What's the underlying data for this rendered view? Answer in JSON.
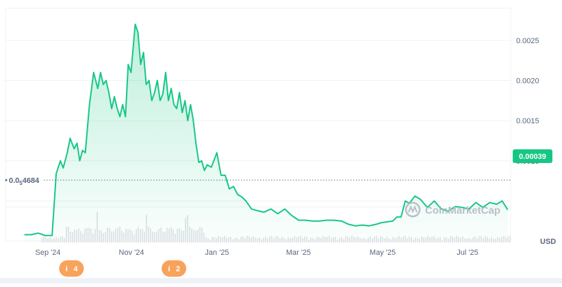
{
  "chart_data": {
    "type": "area",
    "currency_label": "USD",
    "current_price_label": "0.00039",
    "min_price_label": "0.0",
    "min_price_subscript": "5",
    "min_price_suffix": "4684",
    "watermark": "CoinMarketCap",
    "x_tick_labels": [
      "Sep '24",
      "Nov '24",
      "Jan '25",
      "Mar '25",
      "May '25",
      "Jul '25"
    ],
    "y_tick_labels": [
      "0.0025",
      "0.0020",
      "0.0015",
      "0.0010"
    ],
    "y_ticks": [
      0.0025,
      0.002,
      0.0015,
      0.001
    ],
    "ylim": [
      0,
      0.0029
    ],
    "min_price": 4.684e-07,
    "grid": true,
    "colors": {
      "line": "#16c784",
      "area_top": "#16c784",
      "badge": "#16c784",
      "volume": "#e3e6ea",
      "marker": "#f7a35c",
      "grid": "#eff2f5",
      "text": "#58667e"
    },
    "event_markers": [
      {
        "label": "4",
        "date": "2024-09-18"
      },
      {
        "label": "2",
        "date": "2024-12-01"
      }
    ],
    "series": [
      {
        "x": [
          "2024-08-15",
          "2024-08-20",
          "2024-08-25",
          "2024-08-30",
          "2024-09-04",
          "2024-09-07",
          "2024-09-10",
          "2024-09-12",
          "2024-09-15",
          "2024-09-17",
          "2024-09-20",
          "2024-09-22",
          "2024-09-24",
          "2024-09-26",
          "2024-09-28",
          "2024-10-01",
          "2024-10-04",
          "2024-10-07",
          "2024-10-09",
          "2024-10-11",
          "2024-10-13",
          "2024-10-15",
          "2024-10-17",
          "2024-10-19",
          "2024-10-21",
          "2024-10-23",
          "2024-10-25",
          "2024-10-27",
          "2024-10-29",
          "2024-10-31",
          "2024-11-03",
          "2024-11-05",
          "2024-11-07",
          "2024-11-09",
          "2024-11-11",
          "2024-11-13",
          "2024-11-15",
          "2024-11-17",
          "2024-11-19",
          "2024-11-21",
          "2024-11-23",
          "2024-11-25",
          "2024-11-27",
          "2024-11-29",
          "2024-12-01",
          "2024-12-03",
          "2024-12-05",
          "2024-12-07",
          "2024-12-09",
          "2024-12-11",
          "2024-12-13",
          "2024-12-15",
          "2024-12-17",
          "2024-12-19",
          "2024-12-21",
          "2024-12-23",
          "2024-12-25",
          "2024-12-28",
          "2025-01-01",
          "2025-01-04",
          "2025-01-07",
          "2025-01-10",
          "2025-01-13",
          "2025-01-16",
          "2025-01-19",
          "2025-01-22",
          "2025-01-26",
          "2025-01-30",
          "2025-02-04",
          "2025-02-09",
          "2025-02-14",
          "2025-02-19",
          "2025-02-24",
          "2025-03-01",
          "2025-03-06",
          "2025-03-11",
          "2025-03-16",
          "2025-03-21",
          "2025-03-26",
          "2025-04-01",
          "2025-04-06",
          "2025-04-11",
          "2025-04-16",
          "2025-04-21",
          "2025-04-26",
          "2025-04-30",
          "2025-05-04",
          "2025-05-08",
          "2025-05-11",
          "2025-05-14",
          "2025-05-17",
          "2025-05-20",
          "2025-05-24",
          "2025-05-28",
          "2025-06-02",
          "2025-06-07",
          "2025-06-12",
          "2025-06-17",
          "2025-06-22",
          "2025-06-27",
          "2025-07-02",
          "2025-07-07",
          "2025-07-12",
          "2025-07-17",
          "2025-07-22",
          "2025-07-26",
          "2025-07-30"
        ],
        "values": [
          8e-05,
          8e-05,
          0.0001,
          7e-05,
          7e-05,
          0.00084,
          0.001,
          0.00091,
          0.0011,
          0.00128,
          0.00115,
          0.00122,
          0.001,
          0.00113,
          0.0011,
          0.0017,
          0.0021,
          0.0019,
          0.0021,
          0.00195,
          0.002,
          0.00185,
          0.00165,
          0.0018,
          0.00165,
          0.00155,
          0.0017,
          0.00155,
          0.0022,
          0.0021,
          0.0027,
          0.0026,
          0.0022,
          0.00235,
          0.00195,
          0.002,
          0.00175,
          0.00185,
          0.002,
          0.00175,
          0.00183,
          0.0021,
          0.00175,
          0.0019,
          0.0017,
          0.00165,
          0.00185,
          0.0016,
          0.00175,
          0.0015,
          0.0017,
          0.0015,
          0.0012,
          0.00098,
          0.001,
          0.00088,
          0.00095,
          0.00092,
          0.0011,
          0.00082,
          0.00082,
          0.00065,
          0.00068,
          0.00058,
          0.00055,
          0.0005,
          0.0004,
          0.00038,
          0.00036,
          0.0004,
          0.00034,
          0.0004,
          0.00032,
          0.00026,
          0.00026,
          0.00025,
          0.00025,
          0.00026,
          0.00026,
          0.00025,
          0.00021,
          0.00019,
          0.0002,
          0.00019,
          0.00021,
          0.00023,
          0.00024,
          0.00025,
          0.0003,
          0.0003,
          0.0005,
          0.00047,
          0.00056,
          0.00052,
          0.00042,
          0.0005,
          0.0004,
          0.00037,
          0.00043,
          0.00042,
          0.0004,
          0.00048,
          0.00042,
          0.00048,
          0.00046,
          0.0005,
          0.00039
        ]
      }
    ]
  }
}
